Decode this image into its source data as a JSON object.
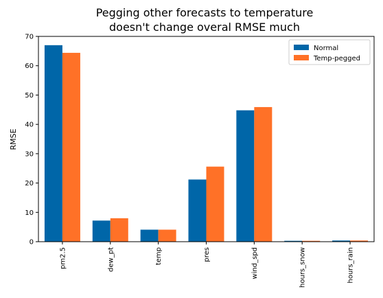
{
  "chart_data": {
    "type": "bar",
    "title": "Pegging other forecasts to temperature doesn't change overal RMSE much",
    "title_lines": [
      "Pegging other forecasts to temperature",
      "doesn't change overal RMSE much"
    ],
    "xlabel": "",
    "ylabel": "RMSE",
    "categories": [
      "pm2.5",
      "dew_pt",
      "temp",
      "pres",
      "wind_spd",
      "hours_snow",
      "hours_rain"
    ],
    "series": [
      {
        "name": "Normal",
        "color": "#0066A8",
        "values": [
          67.0,
          7.2,
          4.1,
          21.2,
          44.8,
          0.3,
          0.4
        ]
      },
      {
        "name": "Temp-pegged",
        "color": "#FF7127",
        "values": [
          64.4,
          8.0,
          4.1,
          25.6,
          45.9,
          0.3,
          0.4
        ]
      }
    ],
    "ylim": [
      0,
      70
    ],
    "yticks": [
      0,
      10,
      20,
      30,
      40,
      50,
      60,
      70
    ],
    "grid": false,
    "legend_position": "top-right"
  }
}
